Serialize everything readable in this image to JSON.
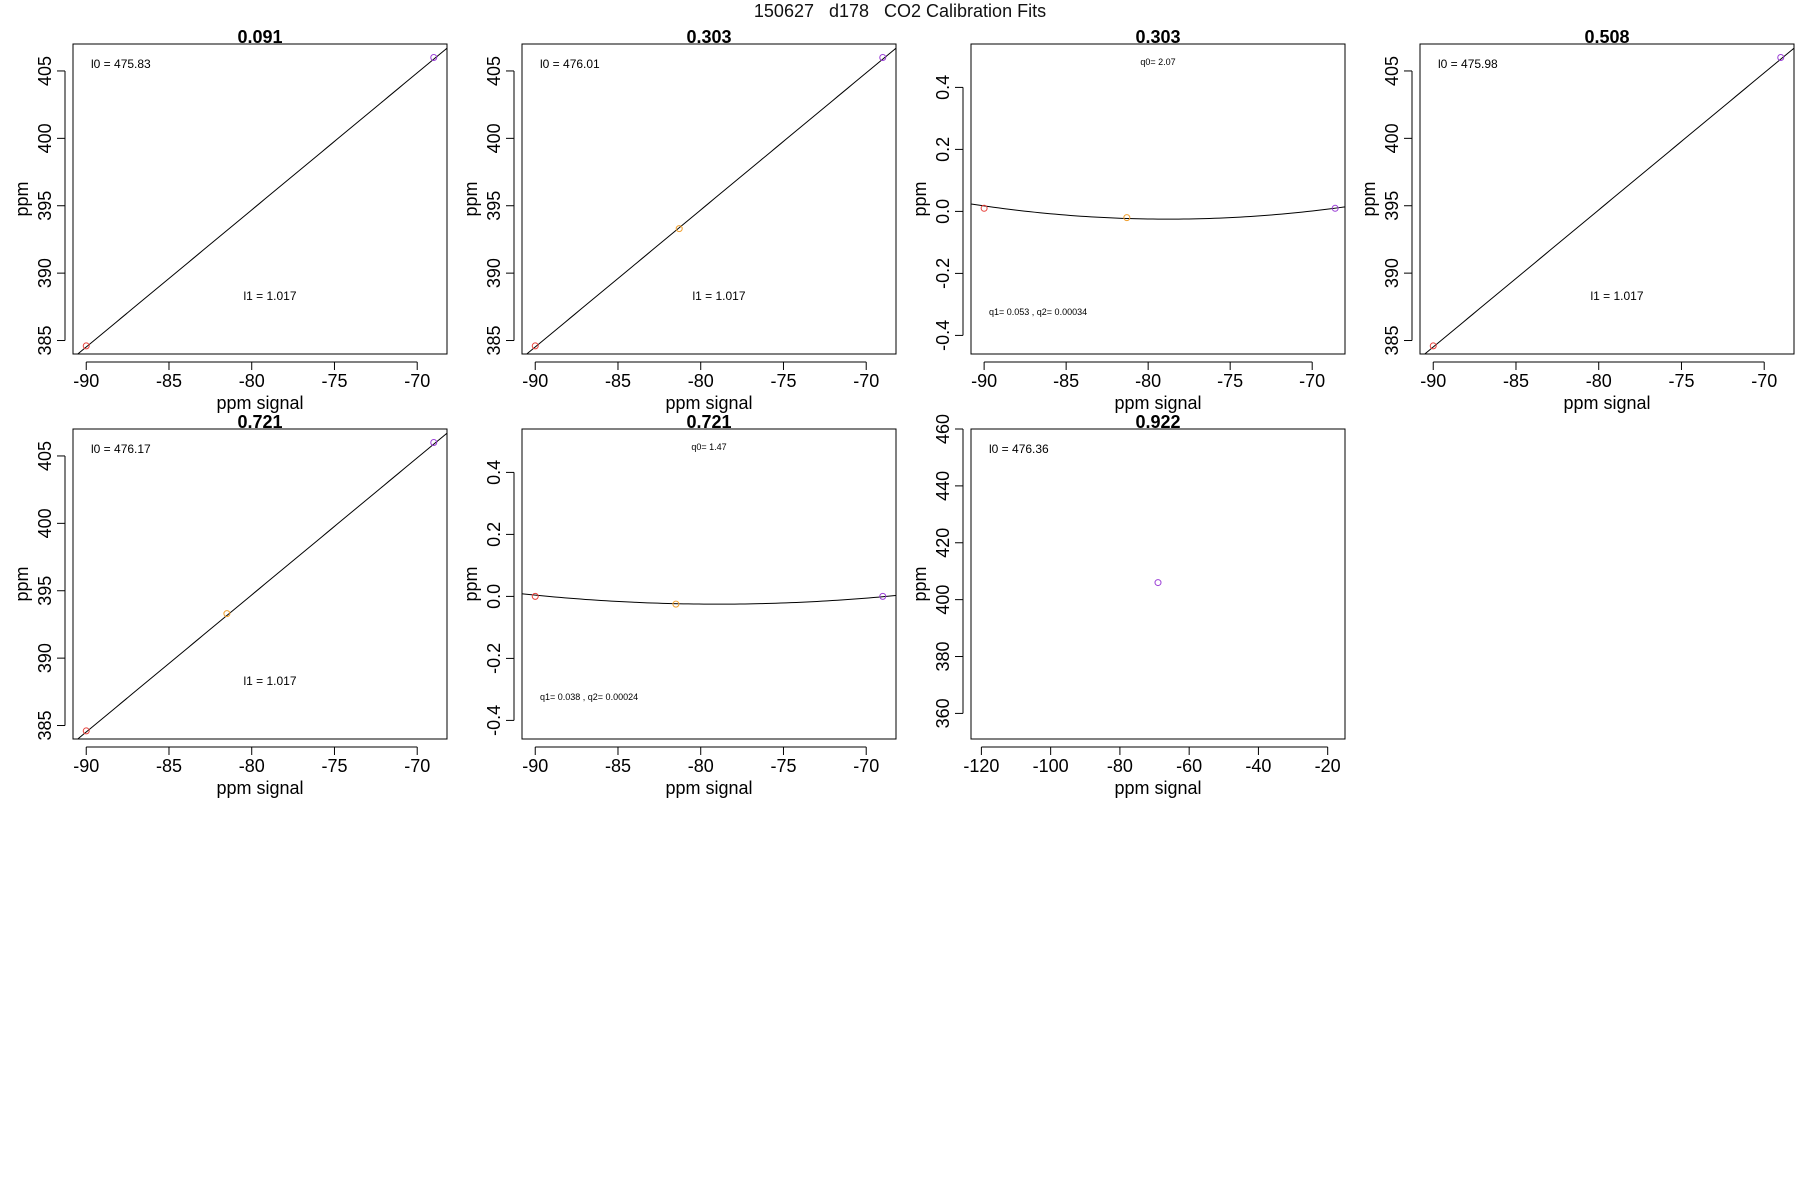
{
  "page": {
    "title": "150627   d178   CO2 Calibration Fits"
  },
  "colors": {
    "fit_line": "#000000",
    "frame": "#000000",
    "point_red": "#e8413b",
    "point_orange": "#f0a030",
    "point_purple": "#9b3fd6"
  },
  "chart_data": [
    {
      "type": "scatter",
      "title": "0.091",
      "xlabel": "ppm signal",
      "ylabel": "ppm",
      "xlim": [
        -90.8,
        -68.2
      ],
      "ylim": [
        384.0,
        407.0
      ],
      "xticks": [
        -90,
        -85,
        -80,
        -75,
        -70
      ],
      "yticks": [
        385,
        390,
        395,
        400,
        405
      ],
      "fit": {
        "kind": "linear",
        "intercept": 476.05,
        "slope": 1.017
      },
      "points": [
        {
          "x": -90.0,
          "y": 384.6,
          "color": "point_red"
        },
        {
          "x": -69.0,
          "y": 406.0,
          "color": "point_purple"
        }
      ],
      "annotations": [
        {
          "text": "l0 =  475.83",
          "pos": "top-left",
          "size": "normal"
        },
        {
          "text": "l1 =  1.017",
          "pos": "lower-middle",
          "size": "normal"
        }
      ]
    },
    {
      "type": "scatter",
      "title": "0.303",
      "xlabel": "ppm signal",
      "ylabel": "ppm",
      "xlim": [
        -90.8,
        -68.2
      ],
      "ylim": [
        384.0,
        407.0
      ],
      "xticks": [
        -90,
        -85,
        -80,
        -75,
        -70
      ],
      "yticks": [
        385,
        390,
        395,
        400,
        405
      ],
      "fit": {
        "kind": "linear",
        "intercept": 476.05,
        "slope": 1.017
      },
      "points": [
        {
          "x": -90.0,
          "y": 384.6,
          "color": "point_red"
        },
        {
          "x": -81.3,
          "y": 393.3,
          "color": "point_orange"
        },
        {
          "x": -69.0,
          "y": 406.0,
          "color": "point_purple"
        }
      ],
      "annotations": [
        {
          "text": "l0 =  476.01",
          "pos": "top-left",
          "size": "normal"
        },
        {
          "text": "l1 =  1.017",
          "pos": "lower-middle",
          "size": "normal"
        }
      ]
    },
    {
      "type": "scatter",
      "title": "0.303",
      "xlabel": "ppm signal",
      "ylabel": "ppm",
      "xlim": [
        -90.8,
        -68.0
      ],
      "ylim": [
        -0.46,
        0.54
      ],
      "xticks": [
        -90,
        -85,
        -80,
        -75,
        -70
      ],
      "yticks": [
        -0.4,
        -0.2,
        0.0,
        0.2,
        0.4
      ],
      "fit": {
        "kind": "quadratic",
        "vertex_x": -78.8,
        "vertex_y": -0.025,
        "curvature": 0.00034
      },
      "points": [
        {
          "x": -90.0,
          "y": 0.01,
          "color": "point_red"
        },
        {
          "x": -81.3,
          "y": -0.02,
          "color": "point_orange"
        },
        {
          "x": -68.6,
          "y": 0.01,
          "color": "point_purple"
        }
      ],
      "annotations": [
        {
          "text": "q0= 2.07",
          "pos": "top-middle",
          "size": "small"
        },
        {
          "text": "q1= 0.053 , q2= 0.00034",
          "pos": "lower-left",
          "size": "small"
        }
      ]
    },
    {
      "type": "scatter",
      "title": "0.508",
      "xlabel": "ppm signal",
      "ylabel": "ppm",
      "xlim": [
        -90.8,
        -68.2
      ],
      "ylim": [
        384.0,
        407.0
      ],
      "xticks": [
        -90,
        -85,
        -80,
        -75,
        -70
      ],
      "yticks": [
        385,
        390,
        395,
        400,
        405
      ],
      "fit": {
        "kind": "linear",
        "intercept": 476.05,
        "slope": 1.017
      },
      "points": [
        {
          "x": -90.0,
          "y": 384.6,
          "color": "point_red"
        },
        {
          "x": -69.0,
          "y": 406.0,
          "color": "point_purple"
        }
      ],
      "annotations": [
        {
          "text": "l0 =  475.98",
          "pos": "top-left",
          "size": "normal"
        },
        {
          "text": "l1 =  1.017",
          "pos": "lower-middle",
          "size": "normal"
        }
      ]
    },
    {
      "type": "scatter",
      "title": "0.721",
      "xlabel": "ppm signal",
      "ylabel": "ppm",
      "xlim": [
        -90.8,
        -68.2
      ],
      "ylim": [
        384.0,
        407.0
      ],
      "xticks": [
        -90,
        -85,
        -80,
        -75,
        -70
      ],
      "yticks": [
        385,
        390,
        395,
        400,
        405
      ],
      "fit": {
        "kind": "linear",
        "intercept": 476.05,
        "slope": 1.017
      },
      "points": [
        {
          "x": -90.0,
          "y": 384.6,
          "color": "point_red"
        },
        {
          "x": -81.5,
          "y": 393.3,
          "color": "point_orange"
        },
        {
          "x": -69.0,
          "y": 406.0,
          "color": "point_purple"
        }
      ],
      "annotations": [
        {
          "text": "l0 =  476.17",
          "pos": "top-left",
          "size": "normal"
        },
        {
          "text": "l1 =  1.017",
          "pos": "lower-middle",
          "size": "normal"
        }
      ]
    },
    {
      "type": "scatter",
      "title": "0.721",
      "xlabel": "ppm signal",
      "ylabel": "ppm",
      "xlim": [
        -90.8,
        -68.2
      ],
      "ylim": [
        -0.46,
        0.54
      ],
      "xticks": [
        -90,
        -85,
        -80,
        -75,
        -70
      ],
      "yticks": [
        -0.4,
        -0.2,
        0.0,
        0.2,
        0.4
      ],
      "fit": {
        "kind": "quadratic",
        "vertex_x": -79.0,
        "vertex_y": -0.025,
        "curvature": 0.00024
      },
      "points": [
        {
          "x": -90.0,
          "y": 0.0,
          "color": "point_red"
        },
        {
          "x": -81.5,
          "y": -0.025,
          "color": "point_orange"
        },
        {
          "x": -69.0,
          "y": 0.0,
          "color": "point_purple"
        }
      ],
      "annotations": [
        {
          "text": "q0= 1.47",
          "pos": "top-middle",
          "size": "small"
        },
        {
          "text": "q1= 0.038 , q2= 0.00024",
          "pos": "lower-left",
          "size": "small"
        }
      ]
    },
    {
      "type": "scatter",
      "title": "0.922",
      "xlabel": "ppm signal",
      "ylabel": "ppm",
      "xlim": [
        -123.0,
        -15.0
      ],
      "ylim": [
        351.0,
        460.0
      ],
      "xticks": [
        -120,
        -100,
        -80,
        -60,
        -40,
        -20
      ],
      "yticks": [
        360,
        380,
        400,
        420,
        440,
        460
      ],
      "fit": {
        "kind": "none"
      },
      "points": [
        {
          "x": -69.0,
          "y": 406.0,
          "color": "point_purple"
        }
      ],
      "annotations": [
        {
          "text": "l0 =  476.36",
          "pos": "top-left",
          "size": "normal"
        }
      ]
    }
  ]
}
